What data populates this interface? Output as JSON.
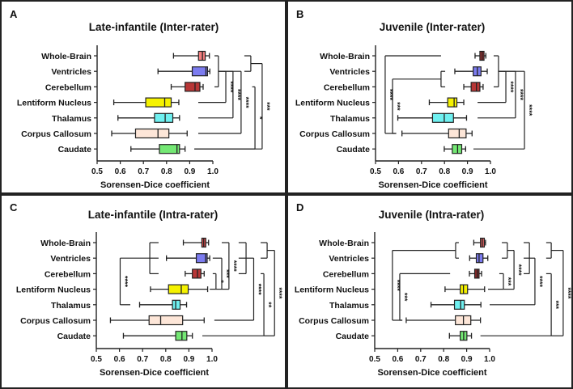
{
  "chart_data": [
    {
      "type": "box",
      "panel_letter": "A",
      "title": "Late-infantile (Inter-rater)",
      "xlabel": "Sorensen-Dice coefficient",
      "xlim": [
        0.5,
        1.0
      ],
      "xticks": [
        "0.5",
        "0.6",
        "0.7",
        "0.8",
        "0.9",
        "1.0"
      ],
      "categories": [
        "Whole-Brain",
        "Ventricles",
        "Cerebellum",
        "Lentiform Nucleus",
        "Thalamus",
        "Corpus Callosum",
        "Caudate"
      ],
      "colors": [
        "#f47f7f",
        "#7c7cf0",
        "#b83636",
        "#f5f200",
        "#6ff0f0",
        "#fde6d8",
        "#74e874"
      ],
      "boxes": [
        {
          "min": 0.83,
          "q1": 0.938,
          "median": 0.955,
          "q3": 0.967,
          "max": 0.985
        },
        {
          "min": 0.763,
          "q1": 0.911,
          "median": 0.97,
          "q3": 0.977,
          "max": 0.987
        },
        {
          "min": 0.82,
          "q1": 0.88,
          "median": 0.923,
          "q3": 0.944,
          "max": 0.958
        },
        {
          "min": 0.572,
          "q1": 0.71,
          "median": 0.792,
          "q3": 0.82,
          "max": 0.853
        },
        {
          "min": 0.59,
          "q1": 0.748,
          "median": 0.794,
          "q3": 0.827,
          "max": 0.856
        },
        {
          "min": 0.563,
          "q1": 0.666,
          "median": 0.763,
          "q3": 0.81,
          "max": 0.889
        },
        {
          "min": 0.646,
          "q1": 0.769,
          "median": 0.845,
          "q3": 0.856,
          "max": 0.88
        }
      ],
      "significance": [
        {
          "y1": 0,
          "y2": 2,
          "x": 1.024,
          "t1": 1.007,
          "t2": 1.007,
          "mids": [],
          "label": ""
        },
        {
          "y1": 1,
          "y2": 3,
          "x": 1.056,
          "t1": 1.024,
          "t2": 0.937,
          "label": "****"
        },
        {
          "y1": 1,
          "y2": 4,
          "x": 1.087,
          "t1": 1.024,
          "t2": 0.937,
          "label": "****"
        },
        {
          "y1": 1,
          "y2": 5,
          "x": 1.122,
          "t1": 1.024,
          "t2": 0.937,
          "label": "****"
        },
        {
          "y1": 0,
          "y2": 1,
          "x": 1.164,
          "t1": 1.136,
          "t2": 1.136,
          "label": ""
        },
        {
          "y1": 0.5,
          "y2": 6,
          "x": 1.213,
          "t1": 1.164,
          "t2": 0.92,
          "label": "***"
        },
        {
          "y1": 2,
          "y2": 6,
          "x": 1.182,
          "t1": 1.17,
          "t2": 0.92,
          "label": "*"
        }
      ]
    },
    {
      "type": "box",
      "panel_letter": "B",
      "title": "Juvenile (Inter-rater)",
      "xlabel": "Sorensen-Dice coefficient",
      "xlim": [
        0.5,
        1.0
      ],
      "xticks": [
        "0.5",
        "0.6",
        "0.7",
        "0.8",
        "0.9",
        "1.0"
      ],
      "categories": [
        "Whole-Brain",
        "Ventricles",
        "Cerebellum",
        "Lentiform Nucleus",
        "Thalamus",
        "Corpus Callosum",
        "Caudate"
      ],
      "colors": [
        "#9e3232",
        "#7c7cf0",
        "#b83636",
        "#f5f200",
        "#6ff0f0",
        "#fde6d8",
        "#74e874"
      ],
      "boxes": [
        {
          "min": 0.933,
          "q1": 0.954,
          "median": 0.964,
          "q3": 0.972,
          "max": 0.98
        },
        {
          "min": 0.845,
          "q1": 0.925,
          "median": 0.943,
          "q3": 0.959,
          "max": 0.986
        },
        {
          "min": 0.884,
          "q1": 0.916,
          "median": 0.939,
          "q3": 0.954,
          "max": 0.968
        },
        {
          "min": 0.734,
          "q1": 0.814,
          "median": 0.842,
          "q3": 0.854,
          "max": 0.884
        },
        {
          "min": 0.597,
          "q1": 0.748,
          "median": 0.799,
          "q3": 0.839,
          "max": 0.896
        },
        {
          "min": 0.615,
          "q1": 0.818,
          "median": 0.864,
          "q3": 0.894,
          "max": 0.92
        },
        {
          "min": 0.799,
          "q1": 0.834,
          "median": 0.857,
          "q3": 0.875,
          "max": 0.892
        }
      ],
      "significance": [
        {
          "y1": 0,
          "y2": 5,
          "x": 0.542,
          "t1": 0.785,
          "t2": 0.59,
          "label": "****"
        },
        {
          "y1": 1,
          "y2": 2,
          "x": 0.785,
          "t1": 0.803,
          "t2": 0.803,
          "label": ""
        },
        {
          "y1": 1.5,
          "y2": 5,
          "x": 0.574,
          "t1": 0.785,
          "t2": 0.59,
          "label": "***"
        },
        {
          "y1": 0,
          "y2": 2,
          "x": 1.035,
          "t1": 1.014,
          "t2": 1.014,
          "label": ""
        },
        {
          "y1": 1,
          "y2": 3,
          "x": 1.067,
          "t1": 1.035,
          "t2": 0.944,
          "label": "****"
        },
        {
          "y1": 1,
          "y2": 4,
          "x": 1.109,
          "t1": 1.035,
          "t2": 0.944,
          "label": "****"
        },
        {
          "y1": 1,
          "y2": 6,
          "x": 1.148,
          "t1": 1.035,
          "t2": 0.926,
          "label": "****"
        }
      ]
    },
    {
      "type": "box",
      "panel_letter": "C",
      "title": "Late-infantile (Intra-rater)",
      "xlabel": "Sorensen-Dice coefficient",
      "xlim": [
        0.5,
        1.0
      ],
      "xticks": [
        "0.5",
        "0.6",
        "0.7",
        "0.8",
        "0.9",
        "1.0"
      ],
      "categories": [
        "Whole-Brain",
        "Ventricles",
        "Cerebellum",
        "Lentiform Nucleus",
        "Thalamus",
        "Corpus Callosum",
        "Caudate"
      ],
      "colors": [
        "#d84a4a",
        "#7c7cf0",
        "#b83636",
        "#f5f200",
        "#6ff0f0",
        "#fde6d8",
        "#74e874"
      ],
      "boxes": [
        {
          "min": 0.876,
          "q1": 0.956,
          "median": 0.964,
          "q3": 0.973,
          "max": 0.985
        },
        {
          "min": 0.803,
          "q1": 0.932,
          "median": 0.972,
          "q3": 0.979,
          "max": 0.99
        },
        {
          "min": 0.884,
          "q1": 0.915,
          "median": 0.937,
          "q3": 0.952,
          "max": 0.966
        },
        {
          "min": 0.734,
          "q1": 0.812,
          "median": 0.867,
          "q3": 0.897,
          "max": 0.981
        },
        {
          "min": 0.687,
          "q1": 0.829,
          "median": 0.843,
          "q3": 0.862,
          "max": 0.89
        },
        {
          "min": 0.561,
          "q1": 0.728,
          "median": 0.778,
          "q3": 0.873,
          "max": 0.966
        },
        {
          "min": 0.617,
          "q1": 0.843,
          "median": 0.87,
          "q3": 0.891,
          "max": 0.915
        }
      ],
      "significance": [
        {
          "y1": 0,
          "y2": 2,
          "x": 0.731,
          "t1": 0.769,
          "t2": 0.769,
          "mids": [
            1
          ],
          "label": ""
        },
        {
          "y1": 1,
          "y2": 4,
          "x": 0.603,
          "t1": 0.731,
          "t2": 0.647,
          "label": "****"
        },
        {
          "y1": 2,
          "y2": 3,
          "x": 1.017,
          "t1": 1.003,
          "t2": 0.99,
          "label": "*"
        },
        {
          "y1": 1,
          "y2": 3,
          "x": 1.042,
          "t1": 1.003,
          "t2": 1.017,
          "label": "***"
        },
        {
          "y1": 0,
          "y2": 3,
          "x": 1.073,
          "t1": 1.042,
          "t2": 1.042,
          "label": "****"
        },
        {
          "y1": 0,
          "y2": 2,
          "x": 1.147,
          "t1": 1.115,
          "t2": 1.115,
          "mids": [
            1
          ],
          "label": ""
        },
        {
          "y1": 1,
          "y2": 5,
          "x": 1.18,
          "t1": 1.147,
          "t2": 1.01,
          "label": "****"
        },
        {
          "y1": 2,
          "y2": 6,
          "x": 1.224,
          "t1": 1.21,
          "t2": 0.958,
          "label": "**"
        },
        {
          "y1": 0,
          "y2": 1,
          "x": 1.238,
          "t1": 1.21,
          "t2": 1.21,
          "label": ""
        },
        {
          "y1": 0.5,
          "y2": 6,
          "x": 1.27,
          "t1": 1.238,
          "t2": 1.224,
          "label": "****"
        }
      ]
    },
    {
      "type": "box",
      "panel_letter": "D",
      "title": "Juvenile (Intra-rater)",
      "xlabel": "Sorensen-Dice coefficient",
      "xlim": [
        0.5,
        1.0
      ],
      "xticks": [
        "0.5",
        "0.6",
        "0.7",
        "0.8",
        "0.9",
        "1.0"
      ],
      "categories": [
        "Whole-Brain",
        "Ventricles",
        "Cerebellum",
        "Lentiform Nucleus",
        "Thalamus",
        "Corpus Callosum",
        "Caudate"
      ],
      "colors": [
        "#e06464",
        "#7c7cf0",
        "#8a2a2a",
        "#f5f200",
        "#6ff0f0",
        "#fde6d8",
        "#74e874"
      ],
      "boxes": [
        {
          "min": 0.931,
          "q1": 0.96,
          "median": 0.968,
          "q3": 0.977,
          "max": 0.982
        },
        {
          "min": 0.913,
          "q1": 0.942,
          "median": 0.954,
          "q3": 0.971,
          "max": 0.992
        },
        {
          "min": 0.912,
          "q1": 0.935,
          "median": 0.946,
          "q3": 0.954,
          "max": 0.965
        },
        {
          "min": 0.806,
          "q1": 0.872,
          "median": 0.886,
          "q3": 0.904,
          "max": 0.978
        },
        {
          "min": 0.745,
          "q1": 0.847,
          "median": 0.874,
          "q3": 0.89,
          "max": 0.962
        },
        {
          "min": 0.637,
          "q1": 0.851,
          "median": 0.886,
          "q3": 0.918,
          "max": 0.96
        },
        {
          "min": 0.825,
          "q1": 0.872,
          "median": 0.887,
          "q3": 0.901,
          "max": 0.921
        }
      ],
      "significance": [
        {
          "y1": 0,
          "y2": 1,
          "x": 0.852,
          "t1": 0.866,
          "t2": 0.866,
          "label": ""
        },
        {
          "y1": 0.5,
          "y2": 5,
          "x": 0.577,
          "t1": 0.852,
          "t2": 0.62,
          "label": "****"
        },
        {
          "y1": 2,
          "y2": 5,
          "x": 0.609,
          "t1": 0.828,
          "t2": 0.62,
          "label": "***"
        },
        {
          "y1": 2,
          "y2": 3,
          "x": 1.06,
          "t1": 1.042,
          "t2": 0.993,
          "label": "***"
        },
        {
          "y1": 0,
          "y2": 1,
          "x": 1.077,
          "t1": 1.053,
          "t2": 1.053,
          "label": ""
        },
        {
          "y1": 0.5,
          "y2": 3,
          "x": 1.106,
          "t1": 1.077,
          "t2": 1.06,
          "label": "****"
        },
        {
          "y1": 0,
          "y2": 2,
          "x": 1.173,
          "t1": 1.148,
          "t2": 1.148,
          "mids": [
            1
          ],
          "label": ""
        },
        {
          "y1": 1,
          "y2": 4,
          "x": 1.197,
          "t1": 1.173,
          "t2": 1.0,
          "label": "****"
        },
        {
          "y1": 2,
          "y2": 6,
          "x": 1.268,
          "t1": 1.246,
          "t2": 0.96,
          "label": "***"
        },
        {
          "y1": 0,
          "y2": 1,
          "x": 1.268,
          "t1": 1.246,
          "t2": 1.246,
          "label": ""
        },
        {
          "y1": 0.5,
          "y2": 6,
          "x": 1.32,
          "t1": 1.268,
          "t2": 1.268,
          "label": "****"
        }
      ]
    }
  ]
}
